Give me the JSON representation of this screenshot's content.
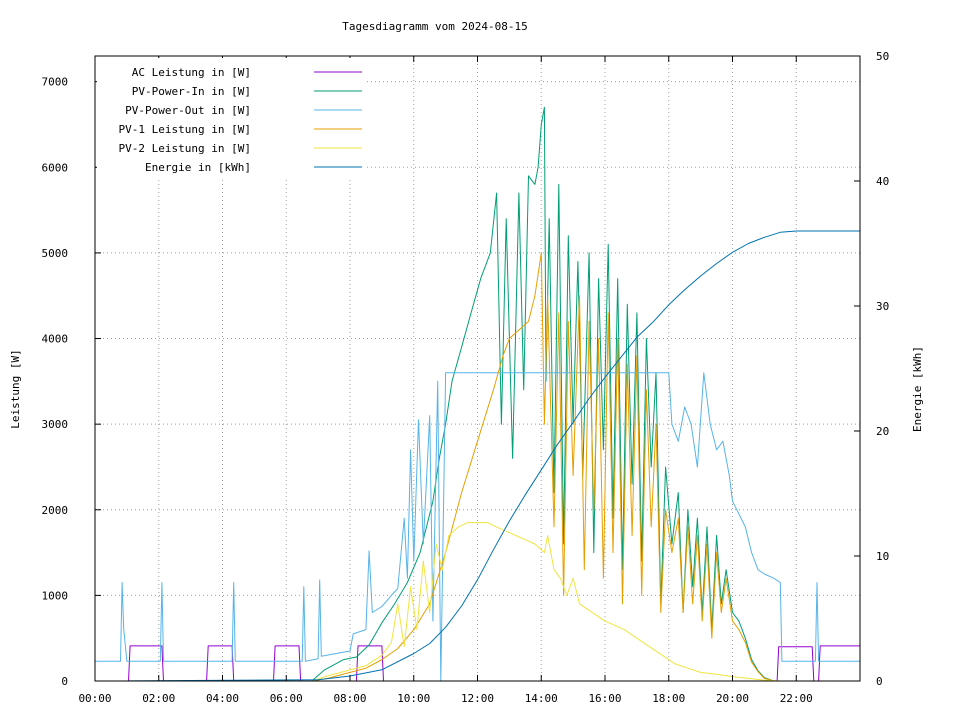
{
  "chart_data": {
    "type": "line",
    "title": "Tagesdiagramm vom 2024-08-15",
    "ylabel": "Leistung [W]",
    "y2label": "Energie [kWh]",
    "xlabel": "",
    "xlim": [
      0,
      24
    ],
    "ylim": [
      0,
      7300
    ],
    "y2lim": [
      0,
      50
    ],
    "x_ticks": [
      "00:00",
      "02:00",
      "04:00",
      "06:00",
      "08:00",
      "10:00",
      "12:00",
      "14:00",
      "16:00",
      "18:00",
      "20:00",
      "22:00"
    ],
    "y_ticks": [
      0,
      1000,
      2000,
      3000,
      4000,
      5000,
      6000,
      7000
    ],
    "y2_ticks": [
      0,
      10,
      20,
      30,
      40,
      50
    ],
    "grid": true,
    "legend_position": "top-left",
    "series": [
      {
        "name": "AC Leistung in [W]",
        "color": "#9400d3",
        "axis": "y",
        "points": [
          [
            0,
            0
          ],
          [
            1.05,
            0
          ],
          [
            1.1,
            410
          ],
          [
            2.1,
            410
          ],
          [
            2.15,
            0
          ],
          [
            3.5,
            0
          ],
          [
            3.55,
            410
          ],
          [
            4.3,
            410
          ],
          [
            4.35,
            0
          ],
          [
            5.6,
            0
          ],
          [
            5.65,
            410
          ],
          [
            6.4,
            410
          ],
          [
            6.45,
            0
          ],
          [
            8.2,
            0
          ],
          [
            8.25,
            410
          ],
          [
            9.0,
            410
          ],
          [
            9.05,
            0
          ],
          [
            21.4,
            0
          ],
          [
            21.45,
            400
          ],
          [
            22.5,
            400
          ],
          [
            22.55,
            0
          ],
          [
            22.7,
            0
          ],
          [
            22.75,
            410
          ],
          [
            24,
            410
          ]
        ]
      },
      {
        "name": "PV-Power-In in [W]",
        "color": "#009e73",
        "axis": "y",
        "points": [
          [
            0,
            0
          ],
          [
            6.8,
            0
          ],
          [
            7.2,
            130
          ],
          [
            7.8,
            250
          ],
          [
            8.2,
            280
          ],
          [
            8.6,
            420
          ],
          [
            9.0,
            680
          ],
          [
            9.4,
            900
          ],
          [
            9.8,
            1150
          ],
          [
            10.2,
            1500
          ],
          [
            10.6,
            2100
          ],
          [
            10.8,
            2600
          ],
          [
            11.0,
            3000
          ],
          [
            11.2,
            3500
          ],
          [
            11.5,
            3900
          ],
          [
            11.8,
            4300
          ],
          [
            12.1,
            4700
          ],
          [
            12.4,
            5000
          ],
          [
            12.6,
            5700
          ],
          [
            12.75,
            3000
          ],
          [
            12.9,
            5400
          ],
          [
            13.1,
            2600
          ],
          [
            13.3,
            5700
          ],
          [
            13.45,
            3400
          ],
          [
            13.6,
            5900
          ],
          [
            13.8,
            5800
          ],
          [
            13.9,
            6000
          ],
          [
            14.0,
            6500
          ],
          [
            14.1,
            6700
          ],
          [
            14.15,
            3500
          ],
          [
            14.25,
            5400
          ],
          [
            14.4,
            2200
          ],
          [
            14.55,
            5800
          ],
          [
            14.7,
            1600
          ],
          [
            14.85,
            5200
          ],
          [
            15.0,
            3000
          ],
          [
            15.15,
            4900
          ],
          [
            15.3,
            2400
          ],
          [
            15.5,
            5000
          ],
          [
            15.65,
            1500
          ],
          [
            15.8,
            4700
          ],
          [
            15.95,
            2700
          ],
          [
            16.1,
            5100
          ],
          [
            16.25,
            1900
          ],
          [
            16.4,
            4700
          ],
          [
            16.55,
            1300
          ],
          [
            16.7,
            4400
          ],
          [
            16.85,
            2300
          ],
          [
            17.0,
            4300
          ],
          [
            17.15,
            1400
          ],
          [
            17.3,
            4000
          ],
          [
            17.45,
            2500
          ],
          [
            17.6,
            3600
          ],
          [
            17.75,
            900
          ],
          [
            17.9,
            2500
          ],
          [
            18.1,
            1600
          ],
          [
            18.3,
            2200
          ],
          [
            18.45,
            800
          ],
          [
            18.6,
            2000
          ],
          [
            18.75,
            1100
          ],
          [
            18.9,
            1900
          ],
          [
            19.05,
            800
          ],
          [
            19.2,
            1800
          ],
          [
            19.35,
            600
          ],
          [
            19.5,
            1700
          ],
          [
            19.65,
            900
          ],
          [
            19.8,
            1300
          ],
          [
            20.0,
            800
          ],
          [
            20.2,
            700
          ],
          [
            20.4,
            500
          ],
          [
            20.6,
            250
          ],
          [
            20.8,
            120
          ],
          [
            21.0,
            40
          ],
          [
            21.3,
            0
          ],
          [
            24,
            0
          ]
        ]
      },
      {
        "name": "PV-Power-Out in [W]",
        "color": "#56b4e9",
        "axis": "y",
        "points": [
          [
            0,
            230
          ],
          [
            0.8,
            230
          ],
          [
            0.85,
            1150
          ],
          [
            0.9,
            610
          ],
          [
            1.0,
            230
          ],
          [
            2.05,
            230
          ],
          [
            2.1,
            1150
          ],
          [
            2.15,
            230
          ],
          [
            4.3,
            230
          ],
          [
            4.35,
            1150
          ],
          [
            4.4,
            230
          ],
          [
            6.5,
            230
          ],
          [
            6.55,
            1100
          ],
          [
            6.6,
            230
          ],
          [
            7.0,
            260
          ],
          [
            7.05,
            1180
          ],
          [
            7.1,
            290
          ],
          [
            8.0,
            350
          ],
          [
            8.1,
            550
          ],
          [
            8.5,
            600
          ],
          [
            8.6,
            1520
          ],
          [
            8.7,
            800
          ],
          [
            9.0,
            870
          ],
          [
            9.3,
            1000
          ],
          [
            9.5,
            1080
          ],
          [
            9.7,
            1900
          ],
          [
            9.8,
            1200
          ],
          [
            9.9,
            2700
          ],
          [
            10.0,
            1400
          ],
          [
            10.15,
            3050
          ],
          [
            10.3,
            1600
          ],
          [
            10.5,
            3100
          ],
          [
            10.6,
            700
          ],
          [
            10.75,
            3500
          ],
          [
            10.85,
            0
          ],
          [
            11.0,
            3600
          ],
          [
            12.0,
            3600
          ],
          [
            13.0,
            3600
          ],
          [
            14.0,
            3600
          ],
          [
            15.0,
            3600
          ],
          [
            16.0,
            3600
          ],
          [
            17.0,
            3600
          ],
          [
            18.0,
            3600
          ],
          [
            18.1,
            3000
          ],
          [
            18.3,
            2800
          ],
          [
            18.5,
            3200
          ],
          [
            18.7,
            3000
          ],
          [
            18.9,
            2500
          ],
          [
            19.1,
            3600
          ],
          [
            19.3,
            3000
          ],
          [
            19.5,
            2700
          ],
          [
            19.7,
            2800
          ],
          [
            19.9,
            2400
          ],
          [
            20.0,
            2100
          ],
          [
            20.2,
            1950
          ],
          [
            20.4,
            1800
          ],
          [
            20.6,
            1500
          ],
          [
            20.8,
            1300
          ],
          [
            21.0,
            1250
          ],
          [
            21.3,
            1200
          ],
          [
            21.5,
            1150
          ],
          [
            21.55,
            230
          ],
          [
            22.6,
            230
          ],
          [
            22.65,
            1150
          ],
          [
            22.7,
            230
          ],
          [
            24,
            230
          ]
        ]
      },
      {
        "name": "PV-1 Leistung in [W]",
        "color": "#e69f00",
        "axis": "y",
        "points": [
          [
            0,
            0
          ],
          [
            6.8,
            0
          ],
          [
            7.3,
            30
          ],
          [
            8.0,
            100
          ],
          [
            8.5,
            150
          ],
          [
            9.0,
            250
          ],
          [
            9.5,
            380
          ],
          [
            10.0,
            600
          ],
          [
            10.5,
            900
          ],
          [
            11.0,
            1500
          ],
          [
            11.5,
            2200
          ],
          [
            12.0,
            2800
          ],
          [
            12.5,
            3400
          ],
          [
            12.8,
            3800
          ],
          [
            13.0,
            4000
          ],
          [
            13.3,
            4100
          ],
          [
            13.6,
            4200
          ],
          [
            13.8,
            4500
          ],
          [
            14.0,
            5000
          ],
          [
            14.1,
            3000
          ],
          [
            14.2,
            4500
          ],
          [
            14.4,
            1800
          ],
          [
            14.55,
            4300
          ],
          [
            14.7,
            1000
          ],
          [
            14.85,
            4200
          ],
          [
            15.0,
            2400
          ],
          [
            15.2,
            4500
          ],
          [
            15.35,
            1300
          ],
          [
            15.5,
            4200
          ],
          [
            15.65,
            2000
          ],
          [
            15.8,
            4000
          ],
          [
            15.95,
            1200
          ],
          [
            16.1,
            4300
          ],
          [
            16.25,
            1500
          ],
          [
            16.4,
            4000
          ],
          [
            16.55,
            900
          ],
          [
            16.7,
            3700
          ],
          [
            16.85,
            1700
          ],
          [
            17.0,
            3800
          ],
          [
            17.15,
            1000
          ],
          [
            17.3,
            3400
          ],
          [
            17.45,
            1800
          ],
          [
            17.6,
            3000
          ],
          [
            17.75,
            800
          ],
          [
            17.9,
            2000
          ],
          [
            18.1,
            1500
          ],
          [
            18.3,
            1900
          ],
          [
            18.45,
            800
          ],
          [
            18.6,
            1800
          ],
          [
            18.75,
            900
          ],
          [
            18.9,
            1700
          ],
          [
            19.05,
            700
          ],
          [
            19.2,
            1600
          ],
          [
            19.35,
            500
          ],
          [
            19.5,
            1500
          ],
          [
            19.65,
            800
          ],
          [
            19.8,
            1200
          ],
          [
            20.0,
            700
          ],
          [
            20.2,
            600
          ],
          [
            20.4,
            450
          ],
          [
            20.6,
            220
          ],
          [
            20.8,
            110
          ],
          [
            21.0,
            30
          ],
          [
            21.3,
            0
          ],
          [
            24,
            0
          ]
        ]
      },
      {
        "name": "PV-2 Leistung in [W]",
        "color": "#f0e442",
        "axis": "y",
        "points": [
          [
            0,
            0
          ],
          [
            6.8,
            0
          ],
          [
            7.3,
            60
          ],
          [
            8.0,
            130
          ],
          [
            8.5,
            180
          ],
          [
            9.0,
            300
          ],
          [
            9.3,
            450
          ],
          [
            9.5,
            900
          ],
          [
            9.7,
            400
          ],
          [
            9.9,
            1100
          ],
          [
            10.1,
            600
          ],
          [
            10.3,
            1400
          ],
          [
            10.5,
            800
          ],
          [
            10.7,
            1600
          ],
          [
            10.9,
            1300
          ],
          [
            11.1,
            1700
          ],
          [
            11.4,
            1800
          ],
          [
            11.7,
            1850
          ],
          [
            12.0,
            1850
          ],
          [
            12.3,
            1850
          ],
          [
            12.6,
            1800
          ],
          [
            12.9,
            1750
          ],
          [
            13.2,
            1700
          ],
          [
            13.5,
            1650
          ],
          [
            13.8,
            1600
          ],
          [
            14.1,
            1500
          ],
          [
            14.2,
            1700
          ],
          [
            14.4,
            1300
          ],
          [
            14.6,
            1200
          ],
          [
            14.8,
            1000
          ],
          [
            15.0,
            1200
          ],
          [
            15.2,
            900
          ],
          [
            15.4,
            850
          ],
          [
            15.6,
            800
          ],
          [
            15.8,
            750
          ],
          [
            16.0,
            700
          ],
          [
            16.3,
            650
          ],
          [
            16.6,
            600
          ],
          [
            17.0,
            500
          ],
          [
            17.4,
            400
          ],
          [
            17.8,
            300
          ],
          [
            18.2,
            200
          ],
          [
            18.6,
            150
          ],
          [
            19.0,
            100
          ],
          [
            19.5,
            80
          ],
          [
            20.0,
            50
          ],
          [
            20.5,
            30
          ],
          [
            21.0,
            10
          ],
          [
            21.5,
            0
          ],
          [
            24,
            0
          ]
        ]
      },
      {
        "name": "Energie in [kWh]",
        "color": "#0072b2",
        "axis": "y2",
        "points": [
          [
            0,
            0
          ],
          [
            7.0,
            0.1
          ],
          [
            8.0,
            0.4
          ],
          [
            9.0,
            0.9
          ],
          [
            10.0,
            2.2
          ],
          [
            10.5,
            3.0
          ],
          [
            11.0,
            4.3
          ],
          [
            11.5,
            6.0
          ],
          [
            12.0,
            8.1
          ],
          [
            12.5,
            10.5
          ],
          [
            13.0,
            12.8
          ],
          [
            13.5,
            14.9
          ],
          [
            14.0,
            16.9
          ],
          [
            14.5,
            18.9
          ],
          [
            15.0,
            20.7
          ],
          [
            15.5,
            22.6
          ],
          [
            16.0,
            24.3
          ],
          [
            16.5,
            25.9
          ],
          [
            17.0,
            27.5
          ],
          [
            17.5,
            28.7
          ],
          [
            18.0,
            30.1
          ],
          [
            18.5,
            31.3
          ],
          [
            19.0,
            32.4
          ],
          [
            19.5,
            33.4
          ],
          [
            20.0,
            34.3
          ],
          [
            20.5,
            35.0
          ],
          [
            21.0,
            35.5
          ],
          [
            21.5,
            35.9
          ],
          [
            22.0,
            36.0
          ],
          [
            24,
            36.0
          ]
        ]
      }
    ]
  }
}
